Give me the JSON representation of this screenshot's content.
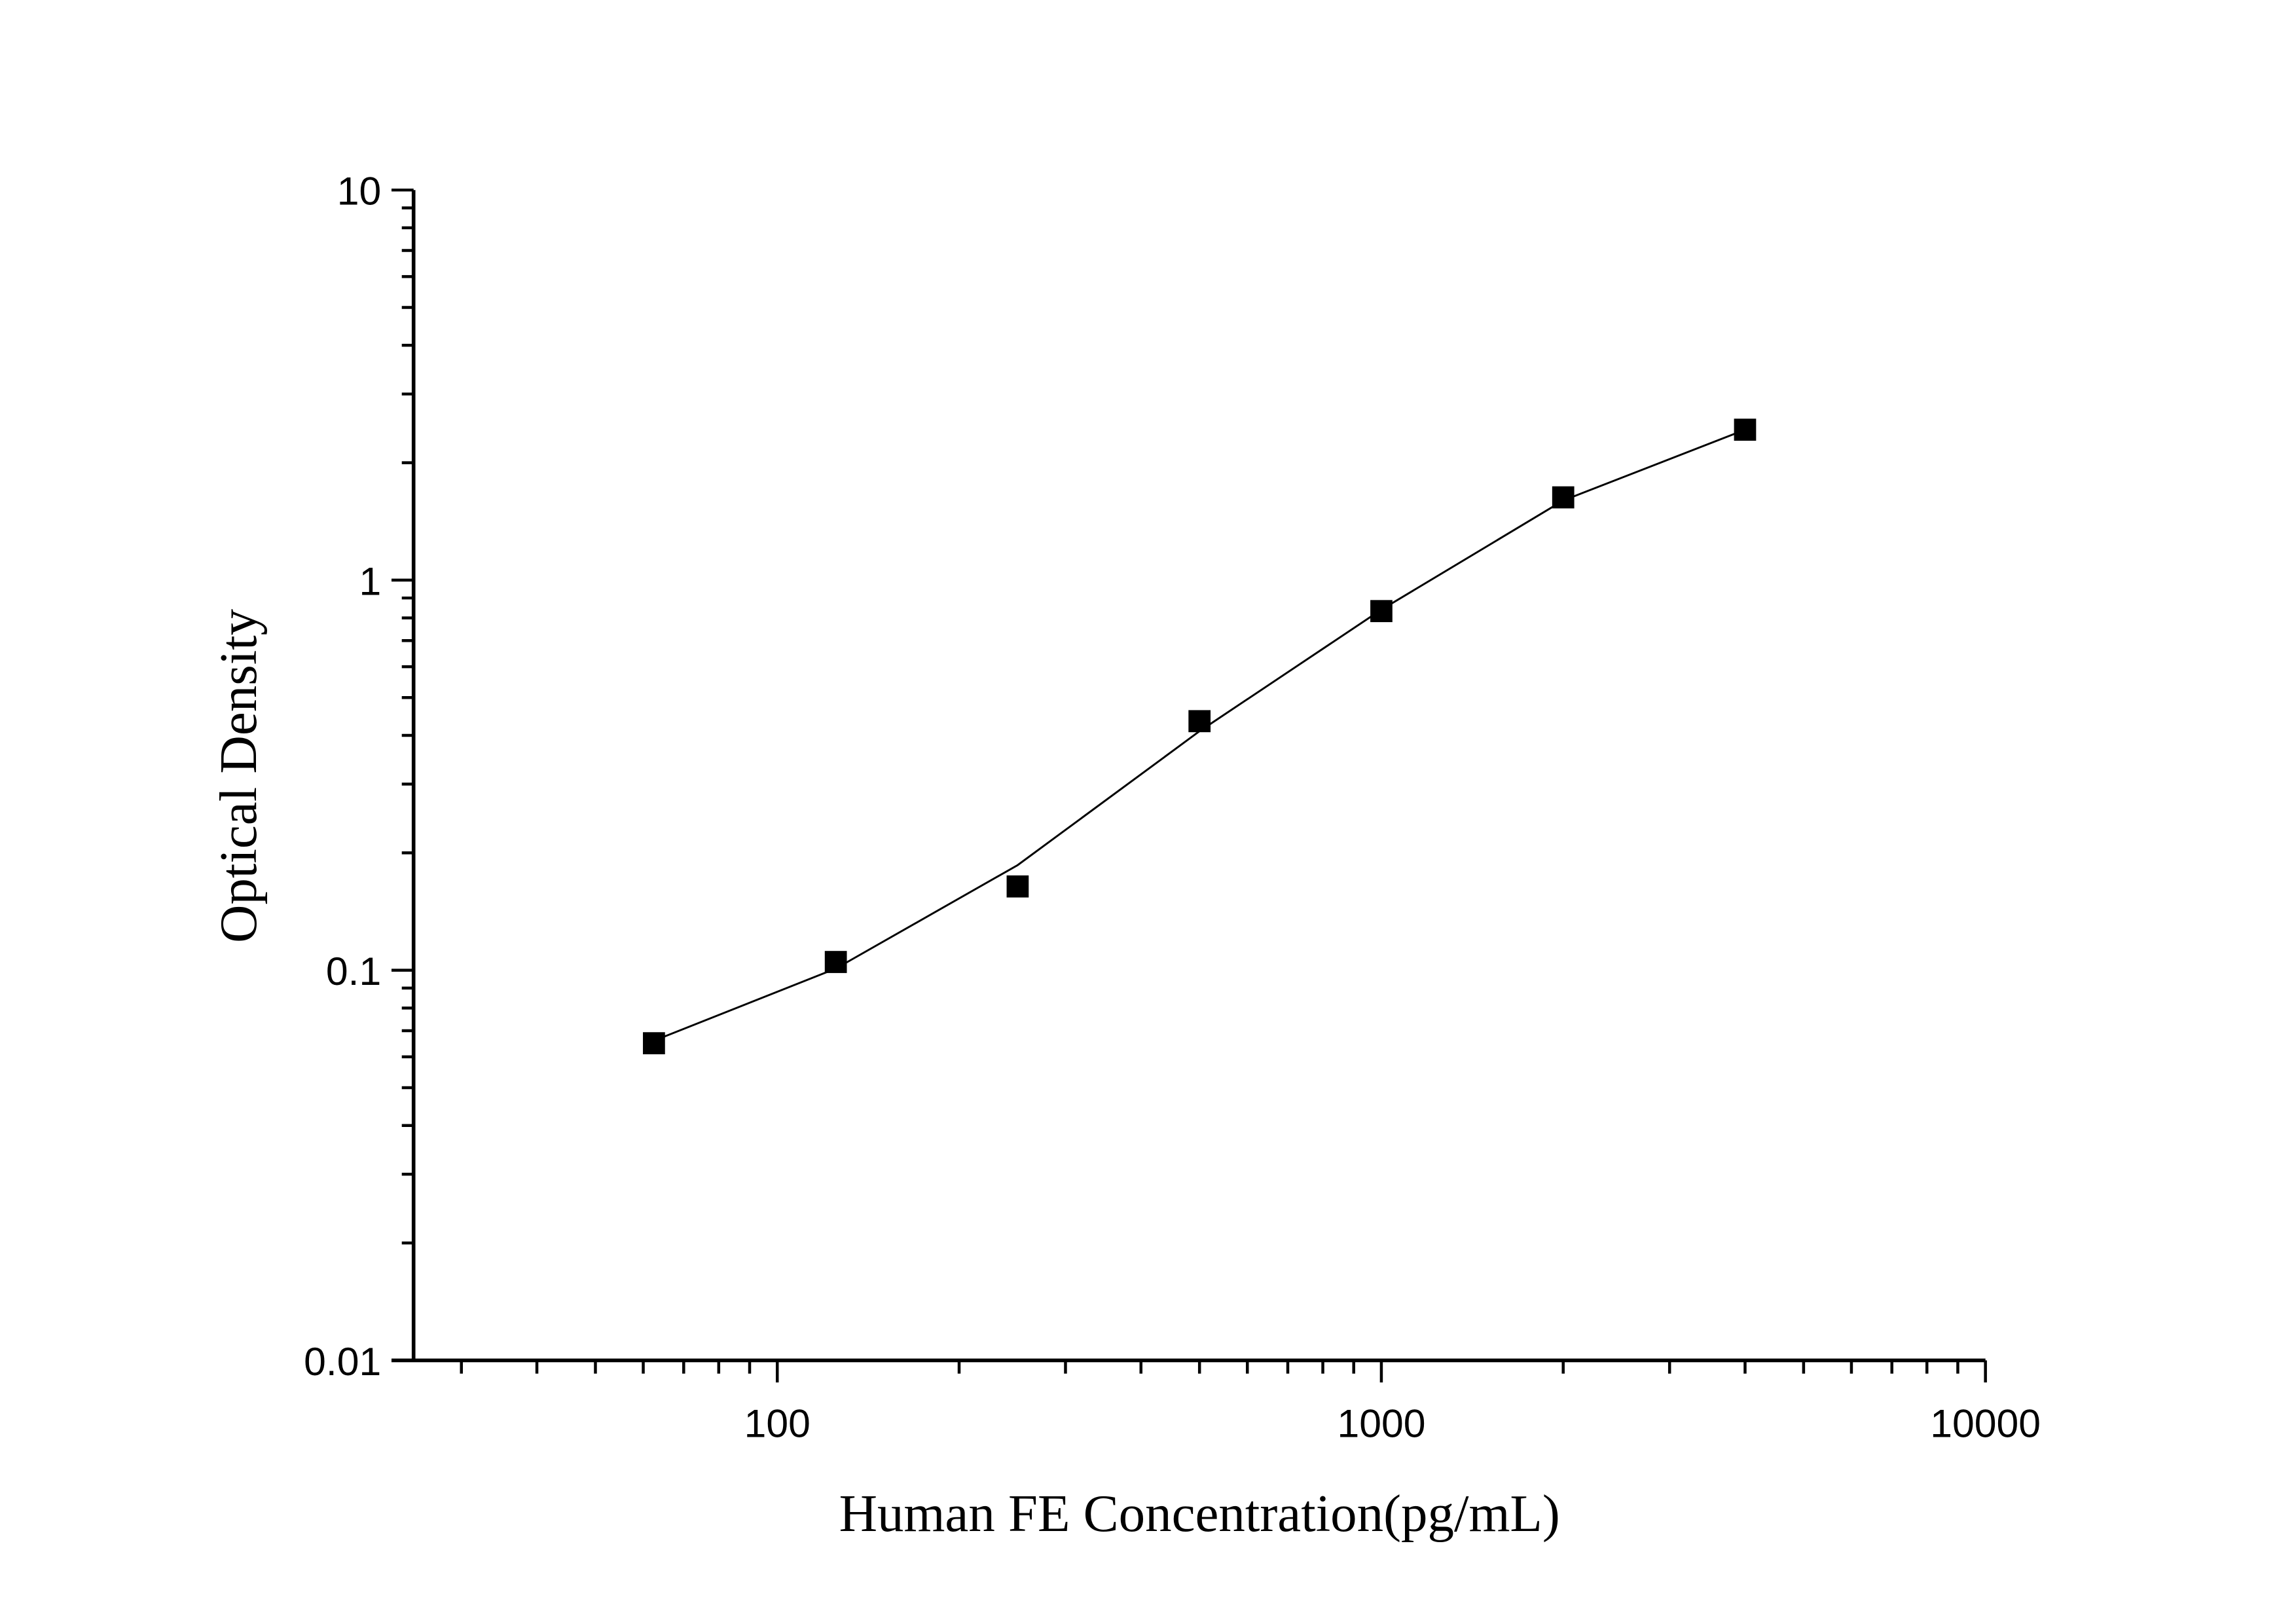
{
  "chart_data": {
    "type": "line",
    "title": "",
    "xlabel": "Human FE Concentration(pg/mL)",
    "ylabel": "Optical Density",
    "xscale": "log",
    "yscale": "log",
    "xlim": [
      25,
      10000
    ],
    "ylim": [
      0.01,
      10
    ],
    "x_ticks": [
      "100",
      "1000",
      "10000"
    ],
    "y_ticks": [
      "0.01",
      "0.1",
      "1",
      "10"
    ],
    "grid": false,
    "legend": "none",
    "series": [
      {
        "marker": "square",
        "color": "#000000",
        "x": [
          62.5,
          125,
          250,
          500,
          1000,
          2000,
          4000
        ],
        "y": [
          0.065,
          0.105,
          0.164,
          0.435,
          0.833,
          1.63,
          2.43
        ]
      }
    ],
    "fit_curve": {
      "color": "#000000",
      "x": [
        62.5,
        125,
        250,
        500,
        1000,
        2000,
        4000
      ],
      "y": [
        0.066,
        0.101,
        0.186,
        0.41,
        0.84,
        1.6,
        2.43
      ]
    }
  }
}
